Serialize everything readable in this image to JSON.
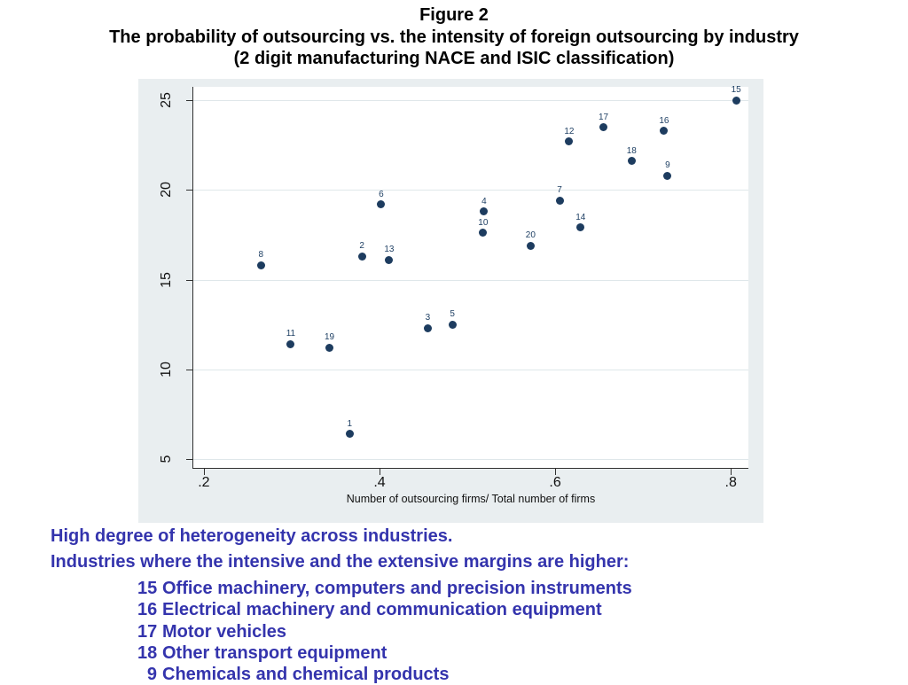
{
  "slide": {
    "title_lines": [
      "Figure 2",
      "The probability of outsourcing vs. the intensity of foreign outsourcing by industry",
      "(2 digit manufacturing NACE and ISIC classification)"
    ]
  },
  "chart_data": {
    "type": "scatter",
    "title": "",
    "xlabel": "Number of outsourcing firms/ Total number of firms",
    "ylabel": "",
    "xlim": [
      0.188,
      0.82
    ],
    "ylim": [
      4.5,
      25.75
    ],
    "x_ticks": [
      0.2,
      0.4,
      0.6,
      0.8
    ],
    "x_tick_labels": [
      ".2",
      ".4",
      ".6",
      ".8"
    ],
    "y_ticks": [
      5,
      10,
      15,
      20,
      25
    ],
    "y_tick_labels": [
      "5",
      "10",
      "15",
      "20",
      "25"
    ],
    "grid": "horizontal-only",
    "legend": "none",
    "colors": {
      "point": "#1d3c5f",
      "point_label": "#1f4064",
      "panel_bg": "#e9eef0",
      "gridline": "#dfe7ea",
      "axis": "#303030"
    },
    "points": [
      {
        "label": "1",
        "x": 0.366,
        "y": 6.4
      },
      {
        "label": "2",
        "x": 0.38,
        "y": 16.3
      },
      {
        "label": "3",
        "x": 0.455,
        "y": 12.3
      },
      {
        "label": "4",
        "x": 0.519,
        "y": 18.8
      },
      {
        "label": "5",
        "x": 0.483,
        "y": 12.5
      },
      {
        "label": "6",
        "x": 0.402,
        "y": 19.2
      },
      {
        "label": "7",
        "x": 0.605,
        "y": 19.4
      },
      {
        "label": "8",
        "x": 0.265,
        "y": 15.8
      },
      {
        "label": "9",
        "x": 0.728,
        "y": 20.8
      },
      {
        "label": "10",
        "x": 0.518,
        "y": 17.6
      },
      {
        "label": "11",
        "x": 0.299,
        "y": 11.4
      },
      {
        "label": "12",
        "x": 0.616,
        "y": 22.7
      },
      {
        "label": "13",
        "x": 0.411,
        "y": 16.1
      },
      {
        "label": "14",
        "x": 0.629,
        "y": 17.9
      },
      {
        "label": "15",
        "x": 0.806,
        "y": 25.0
      },
      {
        "label": "16",
        "x": 0.724,
        "y": 23.3
      },
      {
        "label": "17",
        "x": 0.655,
        "y": 23.5
      },
      {
        "label": "18",
        "x": 0.687,
        "y": 21.6
      },
      {
        "label": "19",
        "x": 0.343,
        "y": 11.2
      },
      {
        "label": "20",
        "x": 0.572,
        "y": 16.9
      }
    ]
  },
  "notes": {
    "text_color": "#3434ad",
    "line1": "High degree of heterogeneity across industries.",
    "line2": "Industries where the intensive and the extensive margins are higher:",
    "industries": [
      {
        "code": "15",
        "name": "Office machinery, computers and precision instruments"
      },
      {
        "code": "16",
        "name": "Electrical machinery and communication equipment"
      },
      {
        "code": "17",
        "name": "Motor vehicles"
      },
      {
        "code": "18",
        "name": "Other transport equipment"
      },
      {
        "code": "9",
        "name": "Chemicals and chemical products"
      }
    ]
  }
}
